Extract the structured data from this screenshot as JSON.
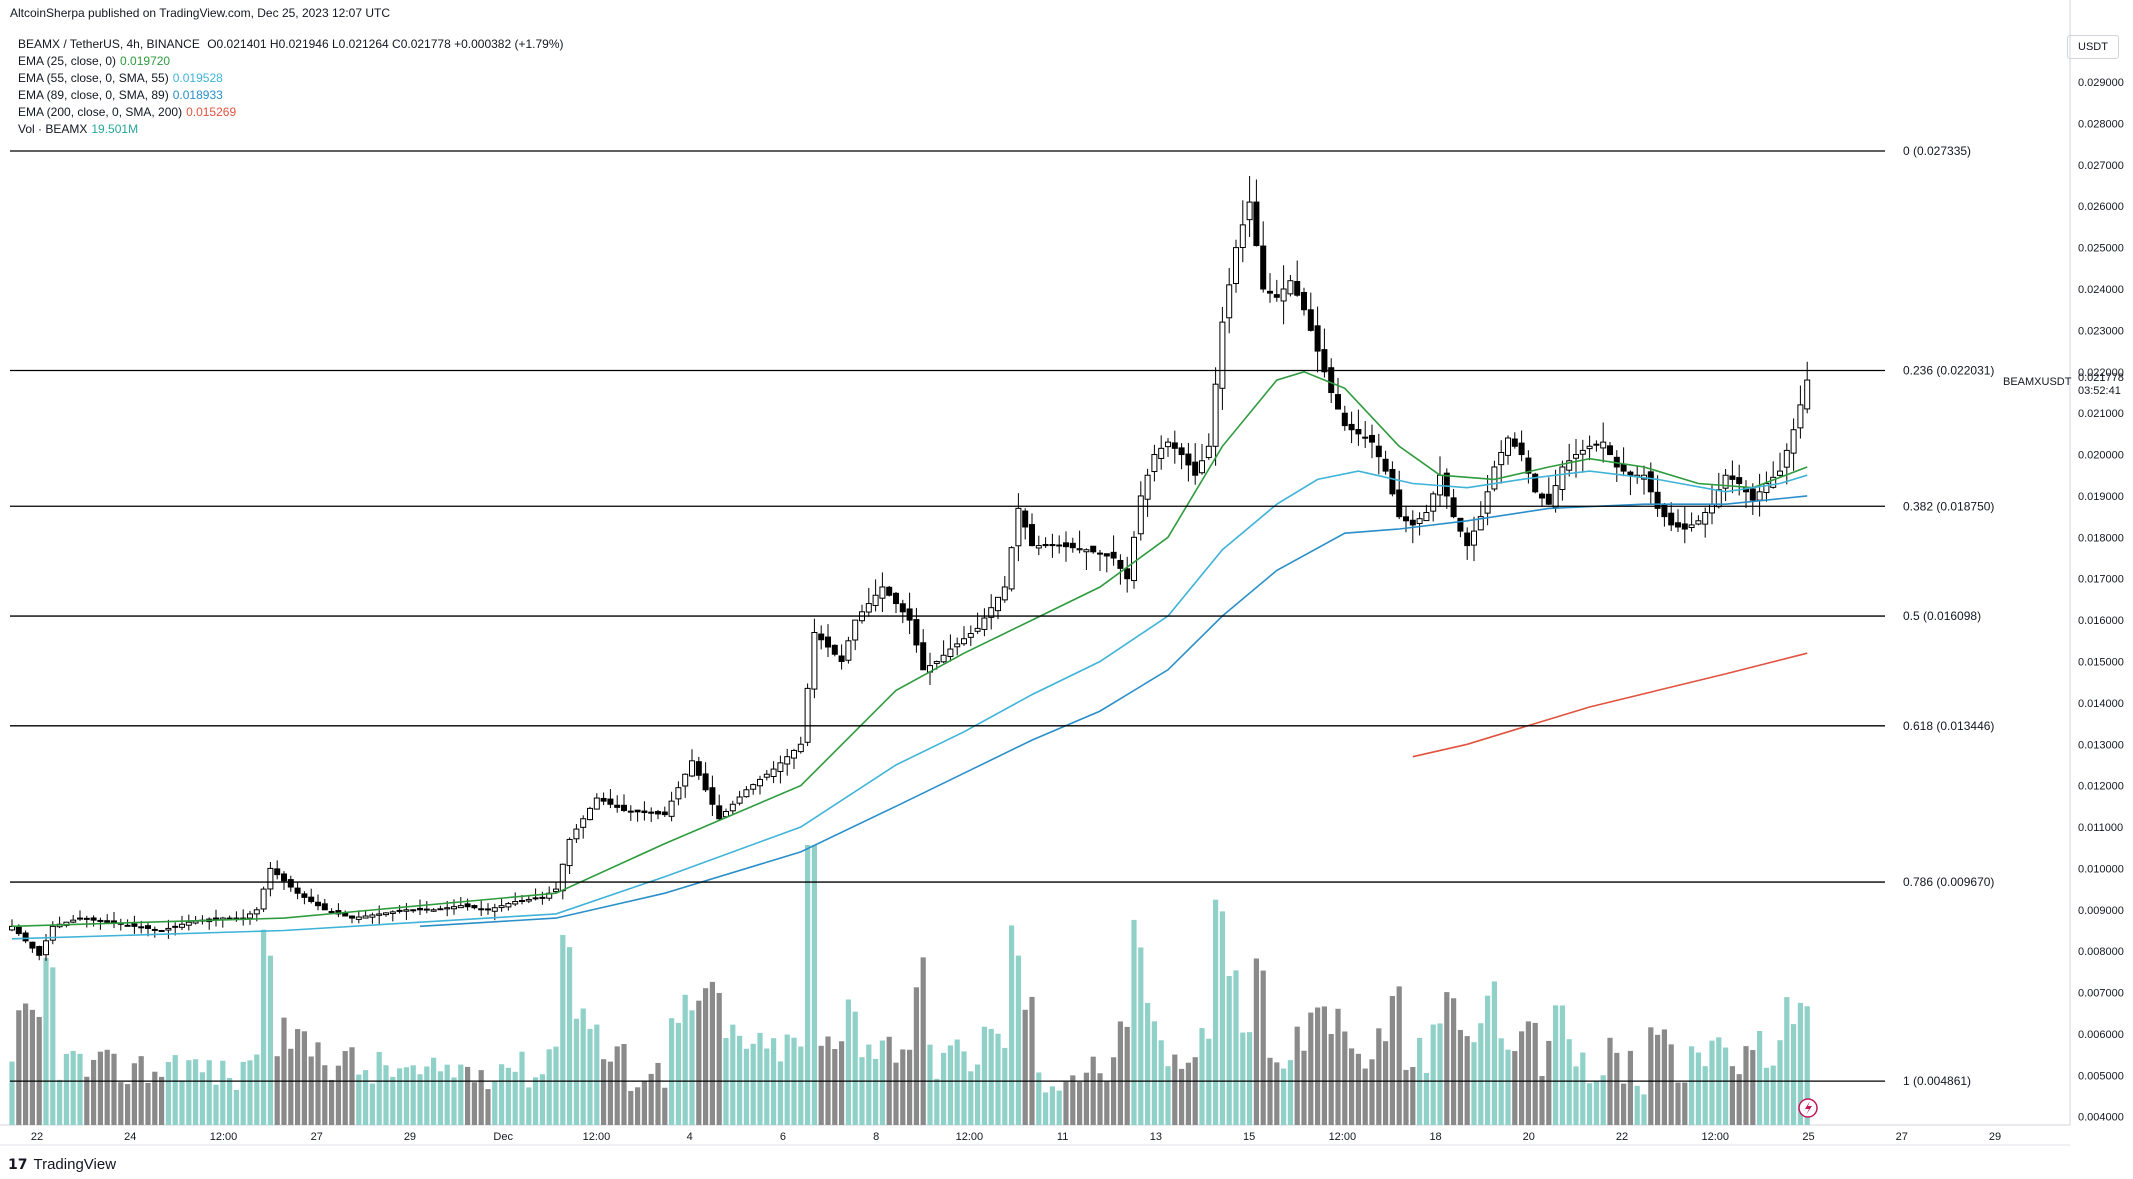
{
  "header": {
    "published": "AltcoinSherpa published on TradingView.com, Dec 25, 2023 12:07 UTC"
  },
  "legend": {
    "symbol": "BEAMX / TetherUS, 4h, BINANCE",
    "ohlc": "O0.021401  H0.021946  L0.021264  C0.021778  +0.000382 (+1.79%)",
    "indicators": [
      {
        "label": "EMA (25, close, 0)",
        "value": "0.019720",
        "color": "#2e9b3e"
      },
      {
        "label": "EMA (55, close, 0, SMA, 55)",
        "value": "0.019528",
        "color": "#3fb3d8"
      },
      {
        "label": "EMA (89, close, 0, SMA, 89)",
        "value": "0.018933",
        "color": "#2a8fc9"
      },
      {
        "label": "EMA (200, close, 0, SMA, 200)",
        "value": "0.015269",
        "color": "#e0533f"
      },
      {
        "label": "Vol · BEAMX",
        "value": "19.501M",
        "color": "#26a69a"
      }
    ]
  },
  "axis": {
    "unit": "USDT",
    "price_ticks": [
      "0.029000",
      "0.028000",
      "0.027000",
      "0.026000",
      "0.025000",
      "0.024000",
      "0.023000",
      "0.022000",
      "0.021000",
      "0.020000",
      "0.019000",
      "0.018000",
      "0.017000",
      "0.016000",
      "0.015000",
      "0.014000",
      "0.013000",
      "0.012000",
      "0.011000",
      "0.010000",
      "0.009000",
      "0.008000",
      "0.007000",
      "0.006000",
      "0.005000",
      "0.004000"
    ],
    "time_labels": [
      "22",
      "24",
      "12:00",
      "27",
      "29",
      "Dec",
      "12:00",
      "4",
      "6",
      "8",
      "12:00",
      "11",
      "13",
      "15",
      "12:00",
      "18",
      "20",
      "22",
      "12:00",
      "25",
      "27",
      "29"
    ],
    "last_price": {
      "symbol": "BEAMXUSDT",
      "price": "0.021778",
      "countdown": "03:52:41"
    }
  },
  "footer": {
    "brand": "TradingView"
  },
  "chart_data": {
    "type": "candlestick",
    "symbol": "BEAMX / TetherUS",
    "interval": "4h",
    "ylim": [
      0.0038,
      0.0305
    ],
    "fib_levels": [
      {
        "label": "0 (0.027335)",
        "value": 0.027335
      },
      {
        "label": "0.236 (0.022031)",
        "value": 0.022031
      },
      {
        "label": "0.382 (0.018750)",
        "value": 0.01875
      },
      {
        "label": "0.5 (0.016098)",
        "value": 0.016098
      },
      {
        "label": "0.618 (0.013446)",
        "value": 0.013446
      },
      {
        "label": "0.786 (0.009670)",
        "value": 0.00967
      },
      {
        "label": "1 (0.004861)",
        "value": 0.004861
      }
    ],
    "close_path": [
      [
        0,
        0.0086
      ],
      [
        4,
        0.0079
      ],
      [
        6,
        0.0086
      ],
      [
        10,
        0.0088
      ],
      [
        14,
        0.0087
      ],
      [
        18,
        0.0086
      ],
      [
        22,
        0.0085
      ],
      [
        26,
        0.0087
      ],
      [
        30,
        0.0088
      ],
      [
        34,
        0.0088
      ],
      [
        36,
        0.009
      ],
      [
        38,
        0.01
      ],
      [
        40,
        0.0097
      ],
      [
        42,
        0.0094
      ],
      [
        44,
        0.0092
      ],
      [
        46,
        0.009
      ],
      [
        48,
        0.0089
      ],
      [
        50,
        0.0088
      ],
      [
        54,
        0.0089
      ],
      [
        58,
        0.009
      ],
      [
        62,
        0.009
      ],
      [
        66,
        0.0091
      ],
      [
        70,
        0.009
      ],
      [
        74,
        0.0092
      ],
      [
        78,
        0.0093
      ],
      [
        80,
        0.0095
      ],
      [
        82,
        0.0107
      ],
      [
        86,
        0.0117
      ],
      [
        90,
        0.0114
      ],
      [
        96,
        0.0113
      ],
      [
        100,
        0.0126
      ],
      [
        104,
        0.0112
      ],
      [
        108,
        0.0119
      ],
      [
        112,
        0.0124
      ],
      [
        116,
        0.013
      ],
      [
        118,
        0.0157
      ],
      [
        122,
        0.015
      ],
      [
        124,
        0.016
      ],
      [
        128,
        0.0168
      ],
      [
        132,
        0.016
      ],
      [
        134,
        0.0148
      ],
      [
        136,
        0.015
      ],
      [
        138,
        0.0153
      ],
      [
        142,
        0.0158
      ],
      [
        146,
        0.0168
      ],
      [
        148,
        0.0187
      ],
      [
        150,
        0.0178
      ],
      [
        154,
        0.0178
      ],
      [
        158,
        0.0177
      ],
      [
        162,
        0.0175
      ],
      [
        164,
        0.017
      ],
      [
        166,
        0.019
      ],
      [
        168,
        0.02
      ],
      [
        170,
        0.0203
      ],
      [
        172,
        0.02
      ],
      [
        174,
        0.0195
      ],
      [
        176,
        0.0202
      ],
      [
        178,
        0.0232
      ],
      [
        180,
        0.025
      ],
      [
        182,
        0.0261
      ],
      [
        184,
        0.024
      ],
      [
        186,
        0.0238
      ],
      [
        188,
        0.0242
      ],
      [
        190,
        0.0235
      ],
      [
        192,
        0.0225
      ],
      [
        194,
        0.0215
      ],
      [
        196,
        0.0207
      ],
      [
        198,
        0.0205
      ],
      [
        200,
        0.0203
      ],
      [
        202,
        0.0196
      ],
      [
        204,
        0.0185
      ],
      [
        206,
        0.0183
      ],
      [
        208,
        0.0186
      ],
      [
        210,
        0.0195
      ],
      [
        212,
        0.0185
      ],
      [
        214,
        0.0178
      ],
      [
        216,
        0.0185
      ],
      [
        218,
        0.0197
      ],
      [
        220,
        0.0204
      ],
      [
        222,
        0.02
      ],
      [
        224,
        0.0191
      ],
      [
        226,
        0.0188
      ],
      [
        228,
        0.0197
      ],
      [
        230,
        0.02
      ],
      [
        232,
        0.0202
      ],
      [
        234,
        0.0203
      ],
      [
        236,
        0.0197
      ],
      [
        238,
        0.0195
      ],
      [
        240,
        0.0195
      ],
      [
        242,
        0.0187
      ],
      [
        244,
        0.0183
      ],
      [
        246,
        0.0182
      ],
      [
        248,
        0.0184
      ],
      [
        250,
        0.0188
      ],
      [
        252,
        0.0195
      ],
      [
        254,
        0.0193
      ],
      [
        256,
        0.0189
      ],
      [
        258,
        0.0193
      ],
      [
        260,
        0.0196
      ],
      [
        262,
        0.0206
      ],
      [
        264,
        0.0218
      ]
    ],
    "ema_series": [
      {
        "name": "EMA (25, close, 0)",
        "color": "#2e9b3e",
        "points": [
          [
            0,
            0.0086
          ],
          [
            40,
            0.0088
          ],
          [
            80,
            0.0094
          ],
          [
            96,
            0.0106
          ],
          [
            116,
            0.012
          ],
          [
            130,
            0.0143
          ],
          [
            140,
            0.0152
          ],
          [
            150,
            0.016
          ],
          [
            160,
            0.0168
          ],
          [
            170,
            0.018
          ],
          [
            178,
            0.0202
          ],
          [
            186,
            0.0218
          ],
          [
            190,
            0.022
          ],
          [
            196,
            0.0216
          ],
          [
            204,
            0.0202
          ],
          [
            210,
            0.0195
          ],
          [
            218,
            0.0194
          ],
          [
            226,
            0.0197
          ],
          [
            232,
            0.0199
          ],
          [
            240,
            0.0197
          ],
          [
            248,
            0.0193
          ],
          [
            256,
            0.0192
          ],
          [
            264,
            0.0197
          ]
        ]
      },
      {
        "name": "EMA (55, close, 0, SMA, 55)",
        "color": "#3fb3d8",
        "points": [
          [
            0,
            0.0083
          ],
          [
            40,
            0.0085
          ],
          [
            80,
            0.0089
          ],
          [
            96,
            0.0098
          ],
          [
            116,
            0.011
          ],
          [
            130,
            0.0125
          ],
          [
            140,
            0.0133
          ],
          [
            150,
            0.0142
          ],
          [
            160,
            0.015
          ],
          [
            170,
            0.0161
          ],
          [
            178,
            0.0177
          ],
          [
            186,
            0.0188
          ],
          [
            192,
            0.0194
          ],
          [
            198,
            0.0196
          ],
          [
            206,
            0.0193
          ],
          [
            214,
            0.0192
          ],
          [
            222,
            0.0194
          ],
          [
            232,
            0.0196
          ],
          [
            242,
            0.0194
          ],
          [
            252,
            0.0191
          ],
          [
            260,
            0.0193
          ],
          [
            264,
            0.0195
          ]
        ]
      },
      {
        "name": "EMA (89, close, 0, SMA, 89)",
        "color": "#2a8fc9",
        "points": [
          [
            60,
            0.0086
          ],
          [
            80,
            0.0088
          ],
          [
            96,
            0.0094
          ],
          [
            116,
            0.0104
          ],
          [
            130,
            0.0115
          ],
          [
            140,
            0.0123
          ],
          [
            150,
            0.0131
          ],
          [
            160,
            0.0138
          ],
          [
            170,
            0.0148
          ],
          [
            178,
            0.0161
          ],
          [
            186,
            0.0172
          ],
          [
            196,
            0.0181
          ],
          [
            204,
            0.0182
          ],
          [
            214,
            0.0184
          ],
          [
            226,
            0.0187
          ],
          [
            240,
            0.0188
          ],
          [
            252,
            0.0188
          ],
          [
            264,
            0.019
          ]
        ]
      },
      {
        "name": "EMA (200, close, 0, SMA, 200)",
        "color": "#e0533f",
        "points": [
          [
            206,
            0.0127
          ],
          [
            214,
            0.013
          ],
          [
            222,
            0.0134
          ],
          [
            232,
            0.0139
          ],
          [
            242,
            0.0143
          ],
          [
            252,
            0.0147
          ],
          [
            264,
            0.0152
          ]
        ]
      }
    ]
  }
}
